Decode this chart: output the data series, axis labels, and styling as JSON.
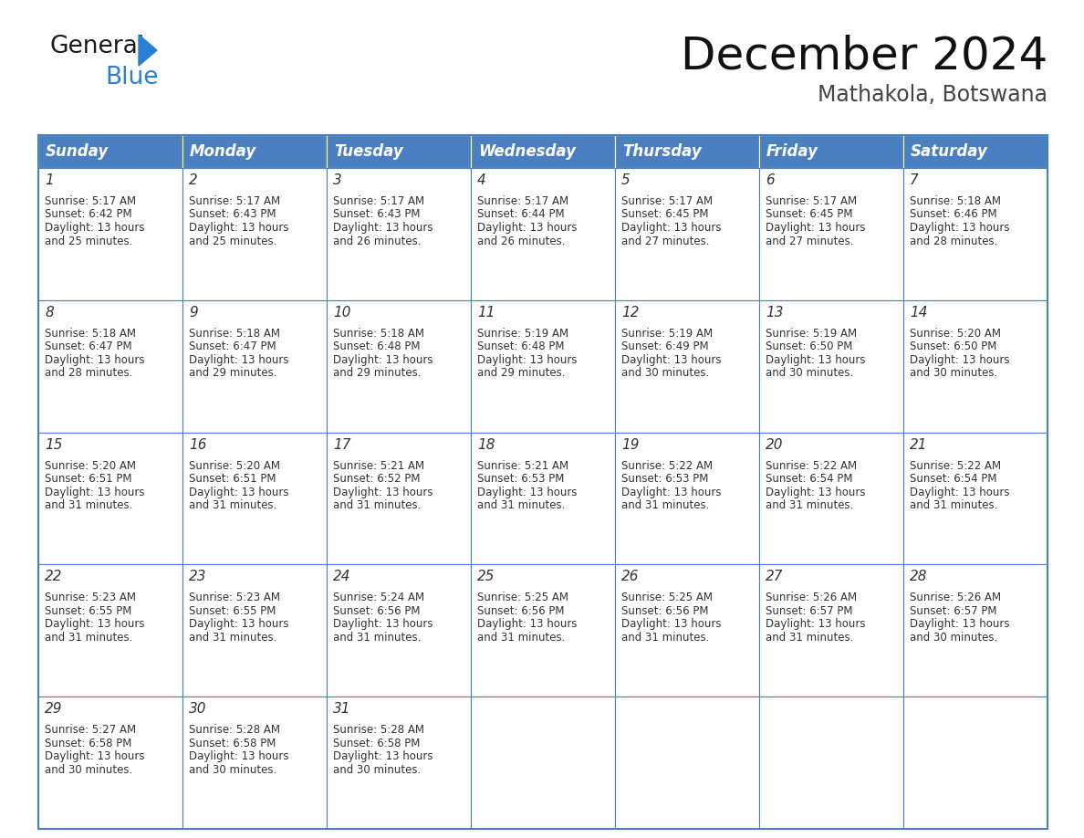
{
  "title": "December 2024",
  "subtitle": "Mathakola, Botswana",
  "header_color": "#4a7fc1",
  "header_text_color": "#FFFFFF",
  "days_of_week": [
    "Sunday",
    "Monday",
    "Tuesday",
    "Wednesday",
    "Thursday",
    "Friday",
    "Saturday"
  ],
  "cell_data": [
    [
      {
        "day": 1,
        "sunrise": "5:17 AM",
        "sunset": "6:42 PM",
        "daylight_hours": 13,
        "daylight_minutes": 25
      },
      {
        "day": 2,
        "sunrise": "5:17 AM",
        "sunset": "6:43 PM",
        "daylight_hours": 13,
        "daylight_minutes": 25
      },
      {
        "day": 3,
        "sunrise": "5:17 AM",
        "sunset": "6:43 PM",
        "daylight_hours": 13,
        "daylight_minutes": 26
      },
      {
        "day": 4,
        "sunrise": "5:17 AM",
        "sunset": "6:44 PM",
        "daylight_hours": 13,
        "daylight_minutes": 26
      },
      {
        "day": 5,
        "sunrise": "5:17 AM",
        "sunset": "6:45 PM",
        "daylight_hours": 13,
        "daylight_minutes": 27
      },
      {
        "day": 6,
        "sunrise": "5:17 AM",
        "sunset": "6:45 PM",
        "daylight_hours": 13,
        "daylight_minutes": 27
      },
      {
        "day": 7,
        "sunrise": "5:18 AM",
        "sunset": "6:46 PM",
        "daylight_hours": 13,
        "daylight_minutes": 28
      }
    ],
    [
      {
        "day": 8,
        "sunrise": "5:18 AM",
        "sunset": "6:47 PM",
        "daylight_hours": 13,
        "daylight_minutes": 28
      },
      {
        "day": 9,
        "sunrise": "5:18 AM",
        "sunset": "6:47 PM",
        "daylight_hours": 13,
        "daylight_minutes": 29
      },
      {
        "day": 10,
        "sunrise": "5:18 AM",
        "sunset": "6:48 PM",
        "daylight_hours": 13,
        "daylight_minutes": 29
      },
      {
        "day": 11,
        "sunrise": "5:19 AM",
        "sunset": "6:48 PM",
        "daylight_hours": 13,
        "daylight_minutes": 29
      },
      {
        "day": 12,
        "sunrise": "5:19 AM",
        "sunset": "6:49 PM",
        "daylight_hours": 13,
        "daylight_minutes": 30
      },
      {
        "day": 13,
        "sunrise": "5:19 AM",
        "sunset": "6:50 PM",
        "daylight_hours": 13,
        "daylight_minutes": 30
      },
      {
        "day": 14,
        "sunrise": "5:20 AM",
        "sunset": "6:50 PM",
        "daylight_hours": 13,
        "daylight_minutes": 30
      }
    ],
    [
      {
        "day": 15,
        "sunrise": "5:20 AM",
        "sunset": "6:51 PM",
        "daylight_hours": 13,
        "daylight_minutes": 31
      },
      {
        "day": 16,
        "sunrise": "5:20 AM",
        "sunset": "6:51 PM",
        "daylight_hours": 13,
        "daylight_minutes": 31
      },
      {
        "day": 17,
        "sunrise": "5:21 AM",
        "sunset": "6:52 PM",
        "daylight_hours": 13,
        "daylight_minutes": 31
      },
      {
        "day": 18,
        "sunrise": "5:21 AM",
        "sunset": "6:53 PM",
        "daylight_hours": 13,
        "daylight_minutes": 31
      },
      {
        "day": 19,
        "sunrise": "5:22 AM",
        "sunset": "6:53 PM",
        "daylight_hours": 13,
        "daylight_minutes": 31
      },
      {
        "day": 20,
        "sunrise": "5:22 AM",
        "sunset": "6:54 PM",
        "daylight_hours": 13,
        "daylight_minutes": 31
      },
      {
        "day": 21,
        "sunrise": "5:22 AM",
        "sunset": "6:54 PM",
        "daylight_hours": 13,
        "daylight_minutes": 31
      }
    ],
    [
      {
        "day": 22,
        "sunrise": "5:23 AM",
        "sunset": "6:55 PM",
        "daylight_hours": 13,
        "daylight_minutes": 31
      },
      {
        "day": 23,
        "sunrise": "5:23 AM",
        "sunset": "6:55 PM",
        "daylight_hours": 13,
        "daylight_minutes": 31
      },
      {
        "day": 24,
        "sunrise": "5:24 AM",
        "sunset": "6:56 PM",
        "daylight_hours": 13,
        "daylight_minutes": 31
      },
      {
        "day": 25,
        "sunrise": "5:25 AM",
        "sunset": "6:56 PM",
        "daylight_hours": 13,
        "daylight_minutes": 31
      },
      {
        "day": 26,
        "sunrise": "5:25 AM",
        "sunset": "6:56 PM",
        "daylight_hours": 13,
        "daylight_minutes": 31
      },
      {
        "day": 27,
        "sunrise": "5:26 AM",
        "sunset": "6:57 PM",
        "daylight_hours": 13,
        "daylight_minutes": 31
      },
      {
        "day": 28,
        "sunrise": "5:26 AM",
        "sunset": "6:57 PM",
        "daylight_hours": 13,
        "daylight_minutes": 30
      }
    ],
    [
      {
        "day": 29,
        "sunrise": "5:27 AM",
        "sunset": "6:58 PM",
        "daylight_hours": 13,
        "daylight_minutes": 30
      },
      {
        "day": 30,
        "sunrise": "5:28 AM",
        "sunset": "6:58 PM",
        "daylight_hours": 13,
        "daylight_minutes": 30
      },
      {
        "day": 31,
        "sunrise": "5:28 AM",
        "sunset": "6:58 PM",
        "daylight_hours": 13,
        "daylight_minutes": 30
      },
      null,
      null,
      null,
      null
    ]
  ],
  "logo_color_general": "#1a1a1a",
  "logo_color_blue": "#2a7fd4",
  "logo_triangle_color": "#2a7fd4",
  "background_color": "#FFFFFF",
  "cell_text_color": "#333333",
  "grid_line_color": "#4a7fc1",
  "cell_bg_color": "#FFFFFF",
  "title_fontsize": 36,
  "subtitle_fontsize": 17,
  "header_fontsize": 12,
  "day_num_fontsize": 11,
  "cell_text_fontsize": 8.5
}
